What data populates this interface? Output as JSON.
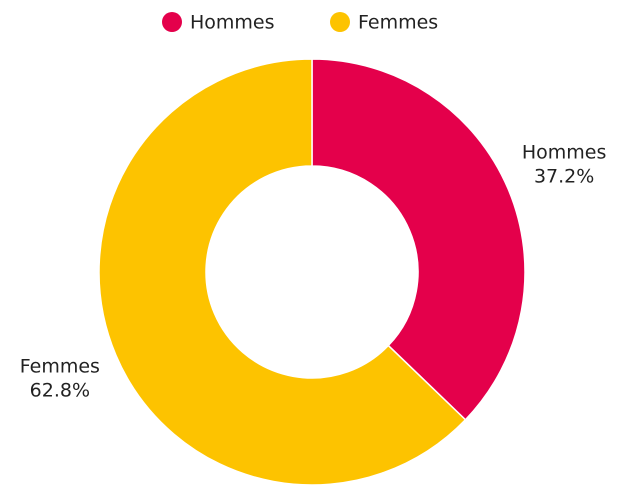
{
  "chart_data": {
    "type": "donut",
    "categories": [
      "Hommes",
      "Femmes"
    ],
    "values": [
      37.2,
      62.8
    ],
    "value_labels": [
      "37.2%",
      "62.8%"
    ],
    "colors": [
      "#e4004b",
      "#fdc300"
    ],
    "legend": "top"
  }
}
